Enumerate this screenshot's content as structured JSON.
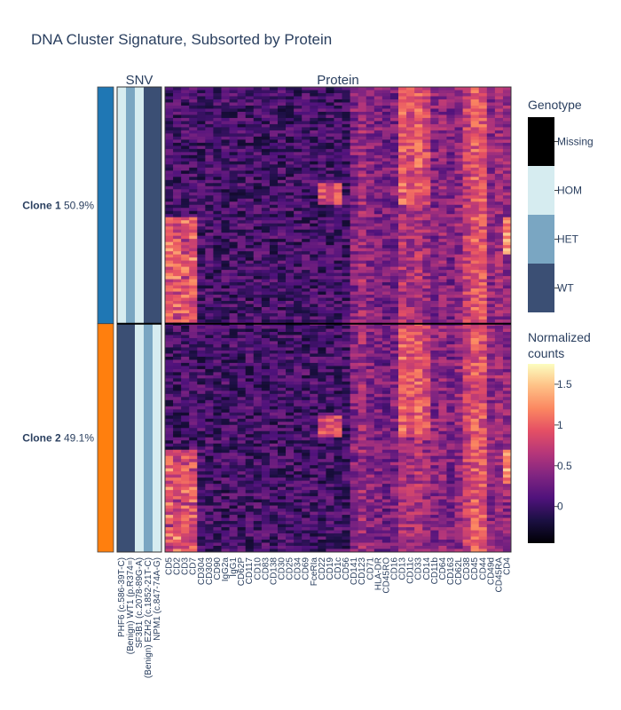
{
  "chart_data": {
    "type": "heatmap",
    "title": "DNA Cluster Signature, Subsorted by Protein",
    "clusters": [
      {
        "name": "Clone 1",
        "percent": "50.9%",
        "color": "#1f77b4",
        "fraction": 0.509
      },
      {
        "name": "Clone 2",
        "percent": "49.1%",
        "color": "#ff7f0e",
        "fraction": 0.491
      }
    ],
    "snv": {
      "title": "SNV",
      "columns": [
        "PHF6 (c.586-39T-C)",
        "(Benign) WT1 (p.R374=)",
        "SF3B1 (c.2078-89G-A)",
        "(Benign) EZH2 (c.1852-21T-C)",
        "NPM1 (c.847-74A-G)"
      ],
      "genotypes_by_clone": [
        [
          "HOM",
          "HET",
          "HOM",
          "WT",
          "WT"
        ],
        [
          "WT",
          "WT",
          "HOM",
          "HET",
          "HOM"
        ]
      ]
    },
    "protein": {
      "title": "Protein",
      "columns": [
        "CD5",
        "CD2",
        "CD3",
        "CD7",
        "CD304",
        "CD303",
        "CD90",
        "IgG2a",
        "IgG1",
        "CD62P",
        "CD117",
        "CD10",
        "CD83",
        "CD138",
        "CD30",
        "CD25",
        "CD34",
        "CD69",
        "FceRIa",
        "CD22",
        "CD19",
        "CD1c",
        "CD56",
        "CD141",
        "CD123",
        "CD71",
        "HLA-DR",
        "CD45RO",
        "CD16",
        "CD13",
        "CD11c",
        "CD33",
        "CD14",
        "CD11b",
        "CD64",
        "CD163",
        "CD62L",
        "CD38",
        "CD45",
        "CD44",
        "CD49d",
        "CD45RA",
        "CD4"
      ],
      "zrange": [
        -0.45,
        1.75
      ]
    },
    "genotype_legend": {
      "title": "Genotype",
      "categories": [
        "Missing",
        "HOM",
        "HET",
        "WT"
      ],
      "colors": {
        "Missing": "#000000",
        "HOM": "#d6ecf0",
        "HET": "#7aa6c2",
        "WT": "#3b4f74"
      }
    },
    "counts_legend": {
      "title_line1": "Normalized",
      "title_line2": "counts",
      "ticks": [
        {
          "label": "1.5",
          "value": 1.5
        },
        {
          "label": "1",
          "value": 1
        },
        {
          "label": "0.5",
          "value": 0.5
        },
        {
          "label": "0",
          "value": 0
        }
      ]
    }
  }
}
